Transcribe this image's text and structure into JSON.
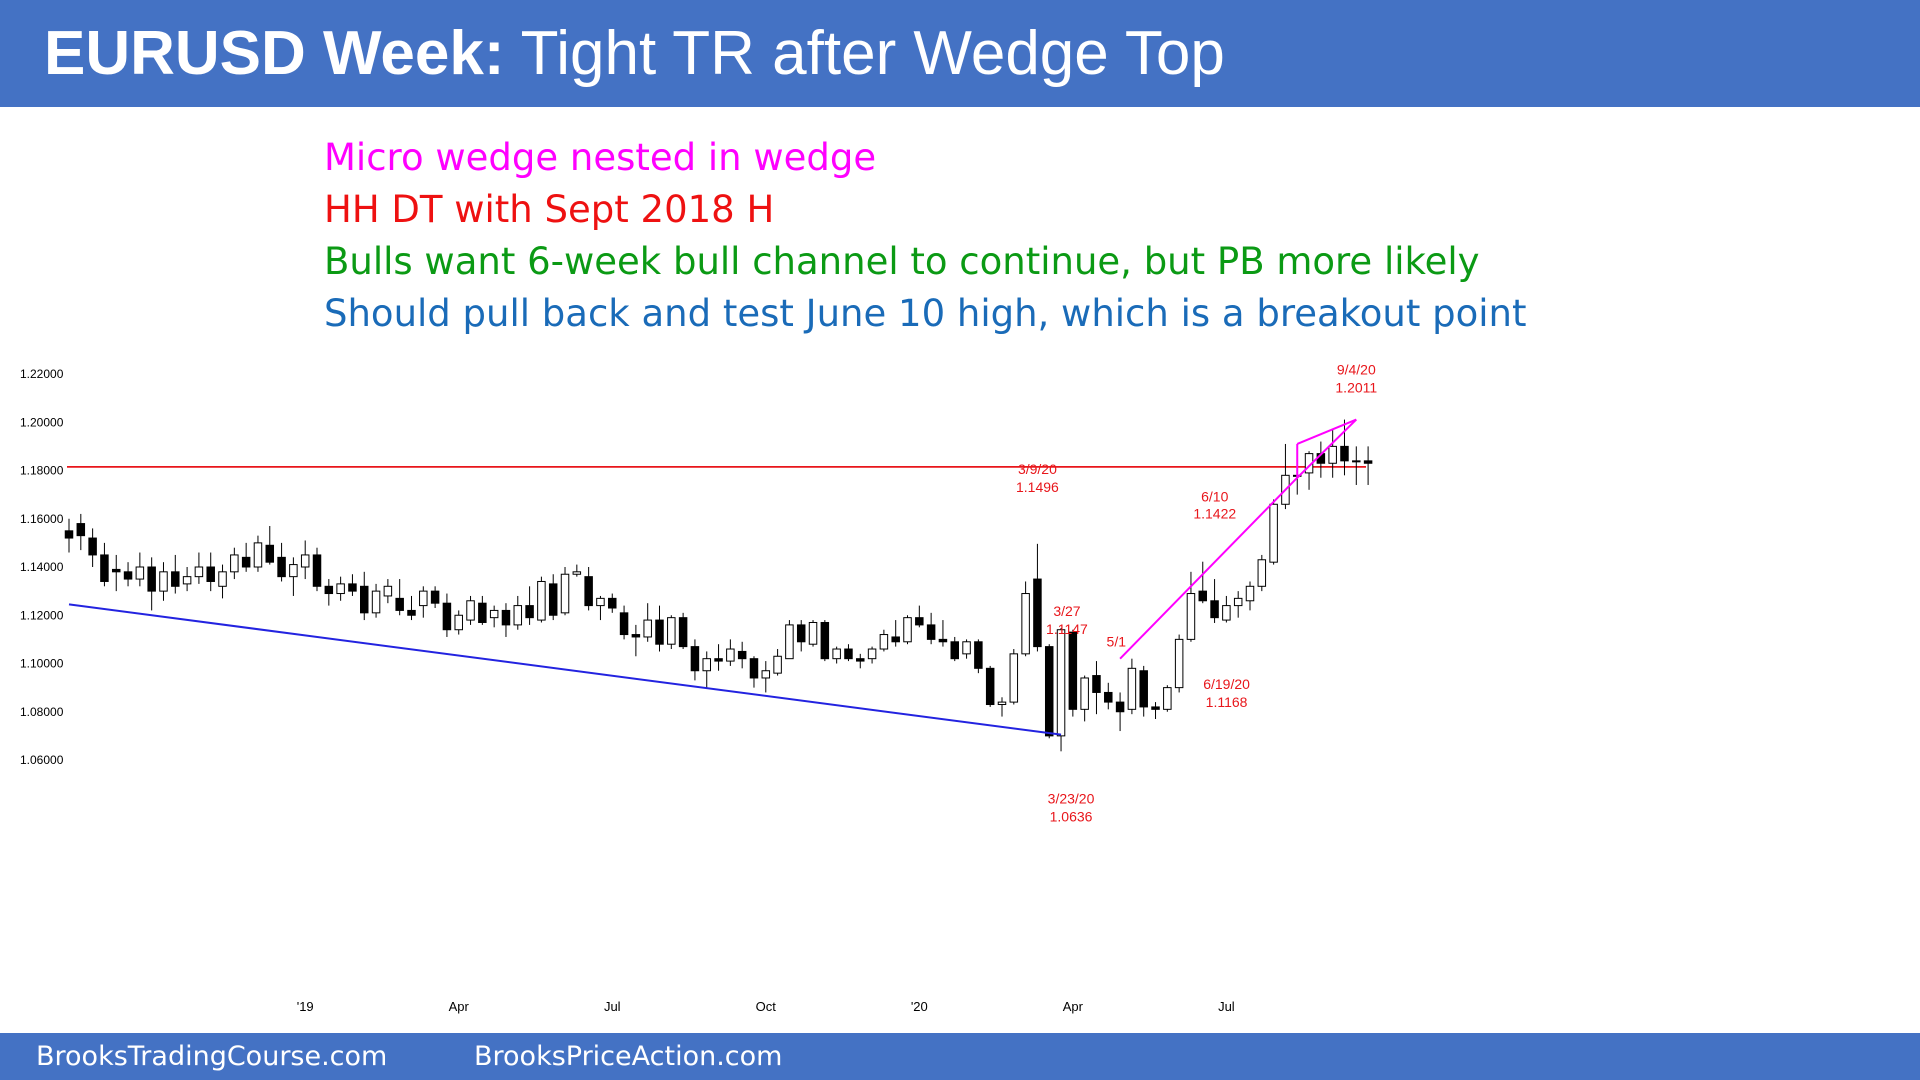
{
  "header": {
    "title_bold": "EURUSD Week:",
    "title_rest": " Tight TR after Wedge Top"
  },
  "notes": [
    {
      "text": "Micro wedge nested in wedge",
      "color": "#ff00ff"
    },
    {
      "text": "HH DT with Sept 2018 H",
      "color": "#ee1111"
    },
    {
      "text": "Bulls want 6-week bull channel to continue, but PB more likely",
      "color": "#0b9a14"
    },
    {
      "text": "Should pull back and test June 10 high, which is a breakout point",
      "color": "#1a6bb8"
    }
  ],
  "footer": {
    "left": "BrooksTradingCourse.com",
    "right": "BrooksPriceAction.com"
  },
  "chart_data": {
    "type": "candlestick",
    "y_tick_labels": [
      "1.22000",
      "1.20000",
      "1.18000",
      "1.16000",
      "1.14000",
      "1.12000",
      "1.10000",
      "1.08000",
      "1.06000"
    ],
    "y_ticks": [
      1.22,
      1.2,
      1.18,
      1.16,
      1.14,
      1.12,
      1.1,
      1.08,
      1.06
    ],
    "ylim": [
      1.047,
      1.2255
    ],
    "x_labels": [
      {
        "label": "'19",
        "week": 20
      },
      {
        "label": "Apr",
        "week": 33
      },
      {
        "label": "Jul",
        "week": 46
      },
      {
        "label": "Oct",
        "week": 59
      },
      {
        "label": "'20",
        "week": 72
      },
      {
        "label": "Apr",
        "week": 85
      },
      {
        "label": "Jul",
        "week": 98
      }
    ],
    "candles": [
      [
        1.155,
        1.16,
        1.146,
        1.152
      ],
      [
        1.158,
        1.162,
        1.147,
        1.153
      ],
      [
        1.152,
        1.156,
        1.14,
        1.145
      ],
      [
        1.145,
        1.15,
        1.132,
        1.134
      ],
      [
        1.139,
        1.145,
        1.13,
        1.138
      ],
      [
        1.138,
        1.142,
        1.132,
        1.135
      ],
      [
        1.135,
        1.146,
        1.132,
        1.14
      ],
      [
        1.14,
        1.144,
        1.122,
        1.13
      ],
      [
        1.13,
        1.142,
        1.126,
        1.138
      ],
      [
        1.138,
        1.145,
        1.129,
        1.132
      ],
      [
        1.133,
        1.14,
        1.13,
        1.136
      ],
      [
        1.136,
        1.146,
        1.133,
        1.14
      ],
      [
        1.14,
        1.146,
        1.13,
        1.134
      ],
      [
        1.132,
        1.141,
        1.127,
        1.138
      ],
      [
        1.138,
        1.148,
        1.135,
        1.145
      ],
      [
        1.144,
        1.15,
        1.138,
        1.14
      ],
      [
        1.14,
        1.153,
        1.138,
        1.15
      ],
      [
        1.149,
        1.157,
        1.141,
        1.142
      ],
      [
        1.144,
        1.15,
        1.134,
        1.136
      ],
      [
        1.136,
        1.144,
        1.128,
        1.141
      ],
      [
        1.14,
        1.151,
        1.135,
        1.145
      ],
      [
        1.145,
        1.148,
        1.13,
        1.132
      ],
      [
        1.132,
        1.135,
        1.124,
        1.129
      ],
      [
        1.129,
        1.136,
        1.126,
        1.133
      ],
      [
        1.133,
        1.137,
        1.128,
        1.13
      ],
      [
        1.132,
        1.138,
        1.118,
        1.121
      ],
      [
        1.121,
        1.133,
        1.119,
        1.13
      ],
      [
        1.128,
        1.135,
        1.125,
        1.132
      ],
      [
        1.127,
        1.135,
        1.12,
        1.122
      ],
      [
        1.122,
        1.128,
        1.118,
        1.12
      ],
      [
        1.124,
        1.132,
        1.119,
        1.13
      ],
      [
        1.13,
        1.132,
        1.123,
        1.125
      ],
      [
        1.125,
        1.129,
        1.111,
        1.114
      ],
      [
        1.114,
        1.122,
        1.112,
        1.12
      ],
      [
        1.118,
        1.128,
        1.116,
        1.126
      ],
      [
        1.125,
        1.128,
        1.116,
        1.117
      ],
      [
        1.119,
        1.124,
        1.115,
        1.122
      ],
      [
        1.122,
        1.125,
        1.111,
        1.116
      ],
      [
        1.116,
        1.128,
        1.114,
        1.124
      ],
      [
        1.124,
        1.132,
        1.116,
        1.119
      ],
      [
        1.118,
        1.136,
        1.117,
        1.134
      ],
      [
        1.133,
        1.137,
        1.118,
        1.12
      ],
      [
        1.121,
        1.14,
        1.12,
        1.137
      ],
      [
        1.137,
        1.141,
        1.136,
        1.138
      ],
      [
        1.136,
        1.14,
        1.122,
        1.124
      ],
      [
        1.124,
        1.128,
        1.118,
        1.127
      ],
      [
        1.127,
        1.129,
        1.121,
        1.123
      ],
      [
        1.121,
        1.124,
        1.11,
        1.112
      ],
      [
        1.112,
        1.116,
        1.103,
        1.111
      ],
      [
        1.111,
        1.125,
        1.109,
        1.118
      ],
      [
        1.118,
        1.124,
        1.105,
        1.108
      ],
      [
        1.108,
        1.12,
        1.106,
        1.119
      ],
      [
        1.119,
        1.121,
        1.106,
        1.107
      ],
      [
        1.107,
        1.11,
        1.093,
        1.097
      ],
      [
        1.097,
        1.105,
        1.09,
        1.102
      ],
      [
        1.102,
        1.108,
        1.097,
        1.101
      ],
      [
        1.101,
        1.11,
        1.099,
        1.106
      ],
      [
        1.105,
        1.109,
        1.098,
        1.102
      ],
      [
        1.102,
        1.103,
        1.09,
        1.094
      ],
      [
        1.094,
        1.101,
        1.088,
        1.097
      ],
      [
        1.096,
        1.106,
        1.095,
        1.103
      ],
      [
        1.102,
        1.118,
        1.102,
        1.116
      ],
      [
        1.116,
        1.118,
        1.105,
        1.109
      ],
      [
        1.108,
        1.118,
        1.107,
        1.117
      ],
      [
        1.117,
        1.118,
        1.101,
        1.102
      ],
      [
        1.102,
        1.107,
        1.1,
        1.106
      ],
      [
        1.106,
        1.108,
        1.101,
        1.102
      ],
      [
        1.102,
        1.104,
        1.098,
        1.101
      ],
      [
        1.102,
        1.107,
        1.1,
        1.106
      ],
      [
        1.106,
        1.114,
        1.105,
        1.112
      ],
      [
        1.111,
        1.118,
        1.107,
        1.109
      ],
      [
        1.109,
        1.12,
        1.108,
        1.119
      ],
      [
        1.119,
        1.124,
        1.115,
        1.116
      ],
      [
        1.116,
        1.121,
        1.108,
        1.11
      ],
      [
        1.11,
        1.118,
        1.107,
        1.109
      ],
      [
        1.109,
        1.111,
        1.101,
        1.102
      ],
      [
        1.104,
        1.11,
        1.102,
        1.109
      ],
      [
        1.109,
        1.11,
        1.096,
        1.098
      ],
      [
        1.098,
        1.099,
        1.082,
        1.083
      ],
      [
        1.083,
        1.086,
        1.078,
        1.084
      ],
      [
        1.084,
        1.106,
        1.083,
        1.104
      ],
      [
        1.104,
        1.134,
        1.103,
        1.129
      ],
      [
        1.135,
        1.1496,
        1.105,
        1.107
      ],
      [
        1.107,
        1.108,
        1.069,
        1.07
      ],
      [
        1.07,
        1.1147,
        1.0636,
        1.114
      ],
      [
        1.113,
        1.114,
        1.078,
        1.081
      ],
      [
        1.081,
        1.095,
        1.076,
        1.094
      ],
      [
        1.095,
        1.101,
        1.079,
        1.088
      ],
      [
        1.088,
        1.092,
        1.081,
        1.084
      ],
      [
        1.084,
        1.088,
        1.072,
        1.08
      ],
      [
        1.081,
        1.102,
        1.079,
        1.098
      ],
      [
        1.097,
        1.099,
        1.078,
        1.082
      ],
      [
        1.082,
        1.084,
        1.077,
        1.081
      ],
      [
        1.081,
        1.091,
        1.08,
        1.09
      ],
      [
        1.09,
        1.112,
        1.088,
        1.11
      ],
      [
        1.11,
        1.138,
        1.109,
        1.129
      ],
      [
        1.13,
        1.1422,
        1.125,
        1.126
      ],
      [
        1.126,
        1.135,
        1.1168,
        1.119
      ],
      [
        1.118,
        1.128,
        1.117,
        1.124
      ],
      [
        1.124,
        1.13,
        1.119,
        1.127
      ],
      [
        1.126,
        1.134,
        1.122,
        1.132
      ],
      [
        1.132,
        1.145,
        1.13,
        1.143
      ],
      [
        1.142,
        1.168,
        1.141,
        1.166
      ],
      [
        1.166,
        1.191,
        1.164,
        1.178
      ],
      [
        1.178,
        1.191,
        1.17,
        1.178
      ],
      [
        1.179,
        1.188,
        1.172,
        1.187
      ],
      [
        1.187,
        1.192,
        1.177,
        1.183
      ],
      [
        1.183,
        1.197,
        1.177,
        1.19
      ],
      [
        1.19,
        1.2011,
        1.178,
        1.184
      ],
      [
        1.184,
        1.19,
        1.174,
        1.184
      ],
      [
        1.184,
        1.19,
        1.174,
        1.183
      ]
    ],
    "horizontal_line": {
      "y": 1.1815,
      "color": "#e8161b"
    },
    "trendlines": [
      {
        "from": {
          "week": 0,
          "y": 1.1245
        },
        "to": {
          "week": 84,
          "y": 1.0705
        },
        "color": "#2323e0"
      },
      {
        "from": {
          "week": 89,
          "y": 1.102
        },
        "to": {
          "week": 104,
          "y": 1.177
        },
        "color": "#ff00ff"
      },
      {
        "from": {
          "week": 104,
          "y": 1.177
        },
        "to": {
          "week": 104,
          "y": 1.191
        },
        "color": "#ff00ff"
      },
      {
        "from": {
          "week": 104,
          "y": 1.191
        },
        "to": {
          "week": 109,
          "y": 1.2011
        },
        "color": "#ff00ff"
      },
      {
        "from": {
          "week": 109,
          "y": 1.2011
        },
        "to": {
          "week": 104,
          "y": 1.177
        },
        "color": "#ff00ff"
      }
    ],
    "annotations": [
      {
        "lines": [
          "3/9/20",
          "1.1496"
        ],
        "week": 82,
        "y": 1.1496
      },
      {
        "lines": [
          "3/27",
          "1.1147"
        ],
        "week": 84.5,
        "y": 1.1147
      },
      {
        "lines": [
          "3/23/20",
          "1.0636"
        ],
        "week": 84,
        "y": 1.0636
      },
      {
        "lines": [
          "5/1"
        ],
        "week": 88,
        "y": 1.102
      },
      {
        "lines": [
          "6/10"
        ],
        "week": 96,
        "y": 1.1422
      },
      {
        "lines": [
          "1.1422"
        ],
        "week": 96,
        "y": 1.1422
      },
      {
        "lines": [
          "6/19/20",
          "1.1168"
        ],
        "week": 97,
        "y": 1.1168
      },
      {
        "lines": [
          "9/4/20",
          "1.2011"
        ],
        "week": 109,
        "y": 1.2011
      }
    ]
  }
}
